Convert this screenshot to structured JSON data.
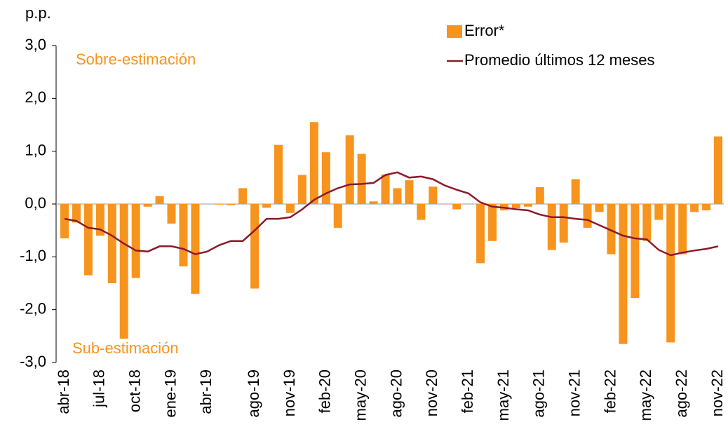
{
  "chart_data": {
    "type": "bar_line",
    "y_unit": "p.p.",
    "annotations": [
      "Sobre-estimación",
      "Sub-estimación"
    ],
    "categories": [
      "abr-18",
      null,
      null,
      "jul-18",
      null,
      null,
      "oct-18",
      null,
      null,
      "ene-19",
      null,
      null,
      "abr-19",
      null,
      null,
      null,
      "ago-19",
      null,
      null,
      "nov-19",
      null,
      null,
      "feb-20",
      null,
      null,
      "may-20",
      null,
      null,
      "ago-20",
      null,
      null,
      "nov-20",
      null,
      null,
      "feb-21",
      null,
      null,
      "may-21",
      null,
      null,
      "ago-21",
      null,
      null,
      "nov-21",
      null,
      null,
      "feb-22",
      null,
      null,
      "may-22",
      null,
      null,
      "ago-22",
      null,
      null,
      "nov-22"
    ],
    "series": [
      {
        "name": "Error*",
        "kind": "bar",
        "color": "#f7941d",
        "values": [
          -0.65,
          -0.35,
          -1.35,
          -0.6,
          -1.5,
          -2.55,
          -1.4,
          -0.05,
          0.15,
          -0.37,
          -1.18,
          -1.7,
          0,
          -0.01,
          -0.02,
          0.3,
          -1.6,
          -0.07,
          1.12,
          -0.17,
          0.55,
          1.55,
          0.98,
          -0.45,
          1.3,
          0.95,
          0.05,
          0.56,
          0.3,
          0.45,
          -0.3,
          0.33,
          0,
          -0.1,
          0,
          -1.12,
          -0.7,
          -0.12,
          -0.08,
          -0.05,
          0.32,
          -0.87,
          -0.73,
          0.47,
          -0.45,
          -0.15,
          -0.95,
          -2.65,
          -1.78,
          -0.7,
          -0.3,
          -2.62,
          -0.95,
          -0.15,
          -0.12,
          1.28
        ]
      },
      {
        "name": "Promedio últimos 12 meses",
        "kind": "line",
        "color": "#8b1a2b",
        "values": [
          -0.28,
          -0.32,
          -0.45,
          -0.48,
          -0.6,
          -0.75,
          -0.88,
          -0.9,
          -0.8,
          -0.8,
          -0.85,
          -0.95,
          -0.9,
          -0.78,
          -0.7,
          -0.7,
          -0.5,
          -0.28,
          -0.28,
          -0.25,
          -0.1,
          0.08,
          0.2,
          0.3,
          0.37,
          0.38,
          0.4,
          0.55,
          0.6,
          0.5,
          0.52,
          0.47,
          0.35,
          0.27,
          0.2,
          0.03,
          -0.05,
          -0.07,
          -0.1,
          -0.12,
          -0.2,
          -0.25,
          -0.25,
          -0.28,
          -0.3,
          -0.4,
          -0.5,
          -0.6,
          -0.65,
          -0.67,
          -0.87,
          -0.97,
          -0.92,
          -0.88,
          -0.85,
          -0.8
        ]
      }
    ],
    "ylim": [
      -3,
      3
    ],
    "yticks": [
      {
        "value": 3,
        "label": "3,0"
      },
      {
        "value": 2,
        "label": "2,0"
      },
      {
        "value": 1,
        "label": "1,0"
      },
      {
        "value": 0,
        "label": "0,0"
      },
      {
        "value": -1,
        "label": "-1,0"
      },
      {
        "value": -2,
        "label": "-2,0"
      },
      {
        "value": -3,
        "label": "-3,0"
      }
    ]
  }
}
